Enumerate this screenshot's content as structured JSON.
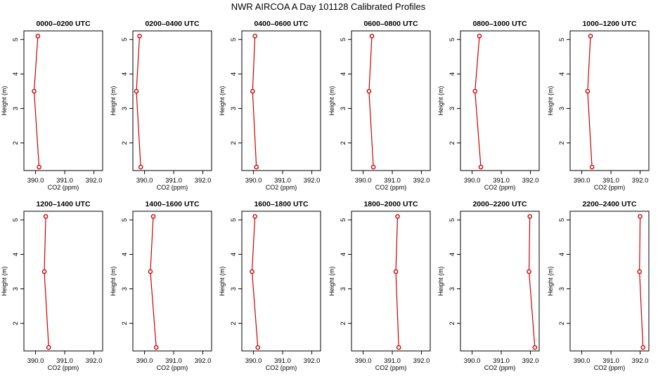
{
  "title": "NWR AIRCOA A  Day 101128  Calibrated Profiles",
  "colors": {
    "line": "#cc0000",
    "point_fill": "#ffffff",
    "frame": "#000000"
  },
  "chart_data": {
    "type": "line",
    "layout": "2 rows x 6 columns",
    "xlabel": "CO2 (ppm)",
    "ylabel": "Height (m)",
    "xlim": [
      389.6,
      392.3
    ],
    "ylim": [
      1.2,
      5.25
    ],
    "x_ticks": [
      "390.0",
      "391.0",
      "392.0"
    ],
    "y_ticks": [
      "2",
      "3",
      "4",
      "5"
    ],
    "x_tick_values": [
      390.0,
      391.0,
      392.0
    ],
    "y_tick_values": [
      2,
      3,
      4,
      5
    ],
    "grid": false,
    "panels": [
      {
        "title": "0000–0200 UTC",
        "heights": [
          5.1,
          3.5,
          1.3
        ],
        "values": [
          390.08,
          389.95,
          390.12
        ]
      },
      {
        "title": "0200–0400 UTC",
        "heights": [
          5.1,
          3.5,
          1.3
        ],
        "values": [
          389.83,
          389.72,
          389.87
        ]
      },
      {
        "title": "0400–0600 UTC",
        "heights": [
          5.1,
          3.5,
          1.3
        ],
        "values": [
          390.05,
          389.97,
          390.1
        ]
      },
      {
        "title": "0600–0800 UTC",
        "heights": [
          5.1,
          3.5,
          1.3
        ],
        "values": [
          390.3,
          390.2,
          390.35
        ]
      },
      {
        "title": "0800–1000 UTC",
        "heights": [
          5.1,
          3.5,
          1.3
        ],
        "values": [
          390.25,
          390.1,
          390.3
        ]
      },
      {
        "title": "1000–1200 UTC",
        "heights": [
          5.1,
          3.5,
          1.3
        ],
        "values": [
          390.3,
          390.2,
          390.35
        ]
      },
      {
        "title": "1200–1400 UTC",
        "heights": [
          5.1,
          3.5,
          1.3
        ],
        "values": [
          390.35,
          390.3,
          390.45
        ]
      },
      {
        "title": "1400–1600 UTC",
        "heights": [
          5.1,
          3.5,
          1.3
        ],
        "values": [
          390.3,
          390.2,
          390.4
        ]
      },
      {
        "title": "1600–1800 UTC",
        "heights": [
          5.1,
          3.5,
          1.3
        ],
        "values": [
          390.05,
          389.95,
          390.15
        ]
      },
      {
        "title": "1800–2000 UTC",
        "heights": [
          5.1,
          3.5,
          1.3
        ],
        "values": [
          391.18,
          391.12,
          391.22
        ]
      },
      {
        "title": "2000–2200 UTC",
        "heights": [
          5.1,
          3.5,
          1.3
        ],
        "values": [
          391.98,
          391.95,
          392.15
        ]
      },
      {
        "title": "2200–2400 UTC",
        "heights": [
          5.1,
          3.5,
          1.3
        ],
        "values": [
          392.0,
          391.98,
          392.1
        ]
      }
    ]
  }
}
